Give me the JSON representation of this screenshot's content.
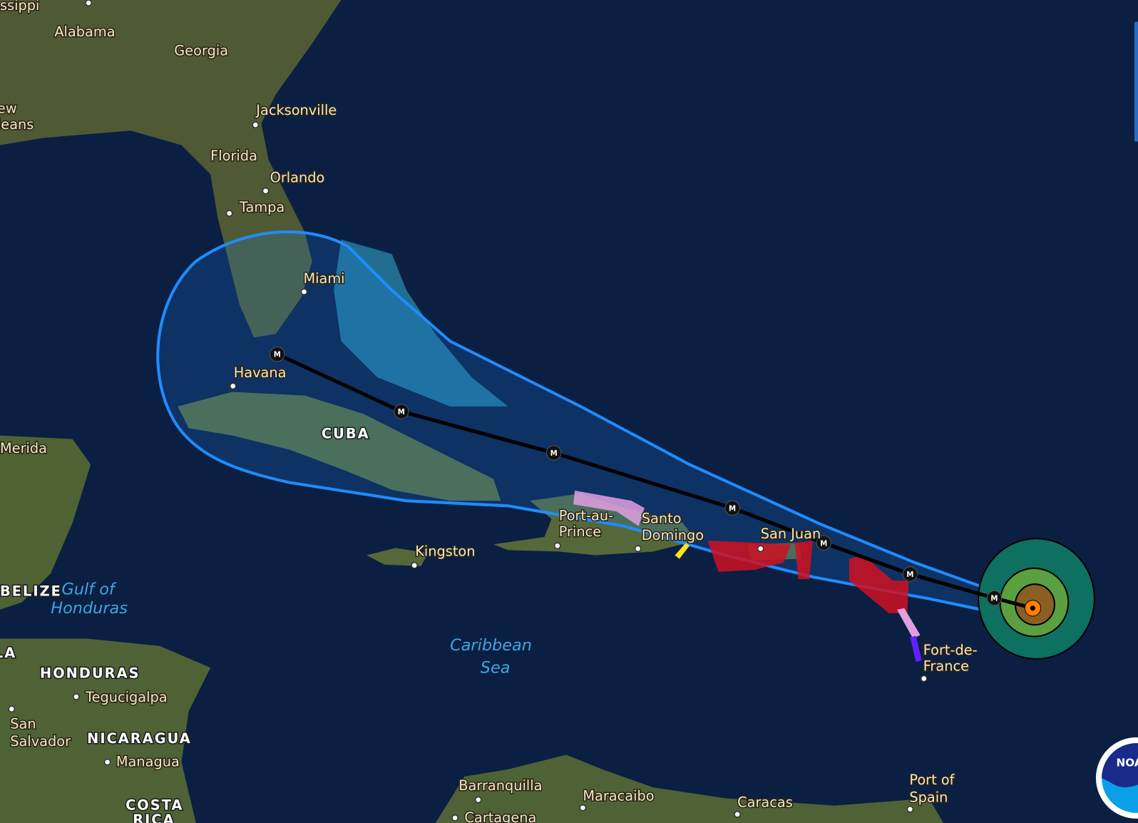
{
  "map": {
    "labels": {
      "mississippi": "ssippi",
      "alabama": "Alabama",
      "georgia": "Georgia",
      "new_orleans_1": "ew",
      "new_orleans_2": "leans",
      "jacksonville": "Jacksonville",
      "florida": "Florida",
      "orlando": "Orlando",
      "tampa": "Tampa",
      "miami": "Miami",
      "havana": "Havana",
      "cuba": "CUBA",
      "merida": "Merida",
      "port_au_prince_1": "Port-au-",
      "port_au_prince_2": "Prince",
      "santo_domingo_1": "Santo",
      "santo_domingo_2": "Domingo",
      "san_juan": "San Juan",
      "kingston": "Kingston",
      "belize": "BELIZE",
      "gulf_honduras_1": "Gulf of",
      "gulf_honduras_2": "Honduras",
      "caribbean_1": "Caribbean",
      "caribbean_2": "Sea",
      "fort_de_france_1": "Fort-de-",
      "fort_de_france_2": "France",
      "guatemala": "LA",
      "honduras": "HONDURAS",
      "tegucigalpa": "Tegucigalpa",
      "san_salvador_1": "San",
      "san_salvador_2": "Salvador",
      "nicaragua": "NICARAGUA",
      "managua": "Managua",
      "costa_rica_1": "COSTA",
      "costa_rica_2": "RICA",
      "barranquilla": "Barranquilla",
      "cartagena": "Cartagena",
      "maracaibo": "Maracaibo",
      "caracas": "Caracas",
      "port_of_spain_1": "Port of",
      "port_of_spain_2": "Spain"
    },
    "track_marker_label": "M",
    "logo_text": "NOAA",
    "colors": {
      "cone_outline": "#1e8cff",
      "track": "#000000",
      "hurricane_warning": "#d01020",
      "hurricane_watch": "#e0a0e0",
      "tropical_storm_warning": "#6020ff",
      "tropical_storm_watch": "#ffe020",
      "storm_center": "#ff7f00",
      "wind_34kt": "#0e7060",
      "wind_50kt": "#5aa040",
      "wind_64kt": "#8a6020"
    }
  }
}
